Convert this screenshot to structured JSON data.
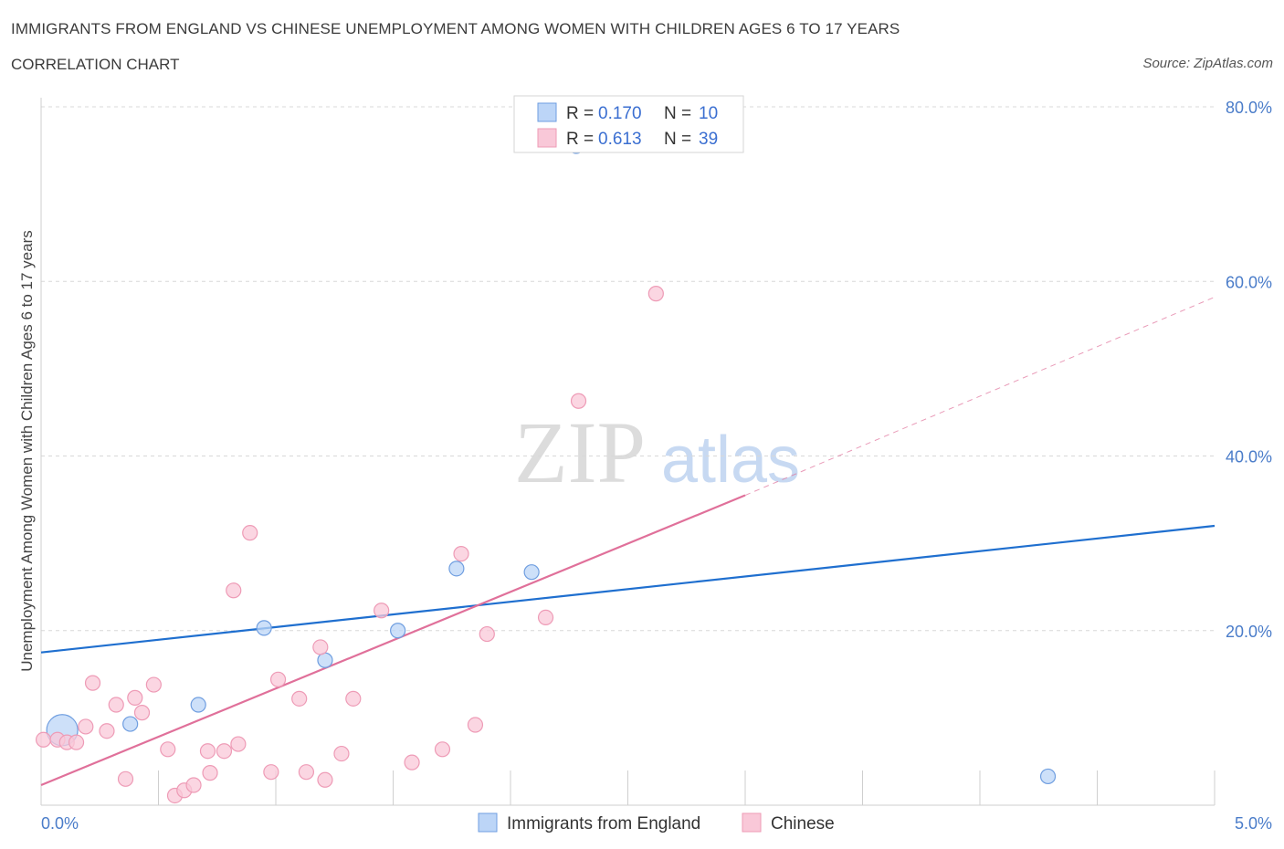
{
  "header": {
    "title": "IMMIGRANTS FROM ENGLAND VS CHINESE UNEMPLOYMENT AMONG WOMEN WITH CHILDREN AGES 6 TO 17 YEARS",
    "subtitle": "CORRELATION CHART",
    "source": "Source: ZipAtlas.com"
  },
  "watermark": {
    "zip": "ZIP",
    "atlas": "atlas"
  },
  "colors": {
    "blue": "#1f6fcf",
    "blue_fill": "#bcd5f7",
    "blue_stroke": "#6f9ee0",
    "pink": "#e0709a",
    "pink_fill": "#f9c8d8",
    "pink_stroke": "#ee9bb6",
    "grid": "#d8d8d8",
    "tick_text": "#4a7cc9"
  },
  "legend": {
    "rows": [
      {
        "r_label": "R =",
        "r_value": "0.170",
        "n_label": "N =",
        "n_value": "10"
      },
      {
        "r_label": "R =",
        "r_value": "0.613",
        "n_label": "N =",
        "n_value": "39"
      }
    ]
  },
  "chart_data": {
    "type": "scatter",
    "title": "IMMIGRANTS FROM ENGLAND VS CHINESE UNEMPLOYMENT AMONG WOMEN WITH CHILDREN AGES 6 TO 17 YEARS",
    "xlabel": "",
    "ylabel": "Unemployment Among Women with Children Ages 6 to 17 years",
    "xlim": [
      0,
      5
    ],
    "ylim": [
      0,
      80
    ],
    "x_tick_labels": [
      "0.0%",
      "5.0%"
    ],
    "y_tick_labels": [
      "20.0%",
      "40.0%",
      "60.0%",
      "80.0%"
    ],
    "y_ticks": [
      20,
      40,
      60,
      80
    ],
    "series": [
      {
        "name": "Immigrants from England",
        "color": "blue",
        "r": 0.17,
        "n": 10,
        "points": [
          {
            "x": 0.09,
            "y": 8.6,
            "big": true
          },
          {
            "x": 0.38,
            "y": 9.3
          },
          {
            "x": 0.67,
            "y": 11.5
          },
          {
            "x": 0.95,
            "y": 20.3
          },
          {
            "x": 1.21,
            "y": 16.6
          },
          {
            "x": 1.52,
            "y": 20.0
          },
          {
            "x": 1.77,
            "y": 27.1
          },
          {
            "x": 2.09,
            "y": 26.7
          },
          {
            "x": 2.28,
            "y": 75.5
          },
          {
            "x": 4.29,
            "y": 3.3
          }
        ],
        "trend": {
          "x0": 0,
          "y0": 17.5,
          "x1": 5,
          "y1": 32.0
        }
      },
      {
        "name": "Chinese",
        "color": "pink",
        "r": 0.613,
        "n": 39,
        "points": [
          {
            "x": 0.01,
            "y": 7.5
          },
          {
            "x": 0.07,
            "y": 7.5
          },
          {
            "x": 0.11,
            "y": 7.2
          },
          {
            "x": 0.15,
            "y": 7.2
          },
          {
            "x": 0.19,
            "y": 9.0
          },
          {
            "x": 0.22,
            "y": 14.0
          },
          {
            "x": 0.28,
            "y": 8.5
          },
          {
            "x": 0.32,
            "y": 11.5
          },
          {
            "x": 0.36,
            "y": 3.0
          },
          {
            "x": 0.4,
            "y": 12.3
          },
          {
            "x": 0.43,
            "y": 10.6
          },
          {
            "x": 0.48,
            "y": 13.8
          },
          {
            "x": 0.54,
            "y": 6.4
          },
          {
            "x": 0.57,
            "y": 1.1
          },
          {
            "x": 0.61,
            "y": 1.7
          },
          {
            "x": 0.65,
            "y": 2.3
          },
          {
            "x": 0.71,
            "y": 6.2
          },
          {
            "x": 0.72,
            "y": 3.7
          },
          {
            "x": 0.78,
            "y": 6.2
          },
          {
            "x": 0.82,
            "y": 24.6
          },
          {
            "x": 0.84,
            "y": 7.0
          },
          {
            "x": 0.89,
            "y": 31.2
          },
          {
            "x": 0.98,
            "y": 3.8
          },
          {
            "x": 1.01,
            "y": 14.4
          },
          {
            "x": 1.1,
            "y": 12.2
          },
          {
            "x": 1.13,
            "y": 3.8
          },
          {
            "x": 1.19,
            "y": 18.1
          },
          {
            "x": 1.21,
            "y": 2.9
          },
          {
            "x": 1.28,
            "y": 5.9
          },
          {
            "x": 1.33,
            "y": 12.2
          },
          {
            "x": 1.45,
            "y": 22.3
          },
          {
            "x": 1.58,
            "y": 4.9
          },
          {
            "x": 1.71,
            "y": 6.4
          },
          {
            "x": 1.79,
            "y": 28.8
          },
          {
            "x": 1.85,
            "y": 9.2
          },
          {
            "x": 1.9,
            "y": 19.6
          },
          {
            "x": 2.15,
            "y": 21.5
          },
          {
            "x": 2.29,
            "y": 46.3
          },
          {
            "x": 2.62,
            "y": 58.6
          }
        ],
        "trend": {
          "x0": 0,
          "y0": 2.3,
          "x1": 3.0,
          "y1": 35.5
        },
        "trend_extended": {
          "x0": 3.0,
          "y0": 35.5,
          "x1": 5,
          "y1": 58.2
        }
      }
    ]
  },
  "bottom_legend": {
    "items": [
      {
        "label": "Immigrants from England"
      },
      {
        "label": "Chinese"
      }
    ]
  }
}
